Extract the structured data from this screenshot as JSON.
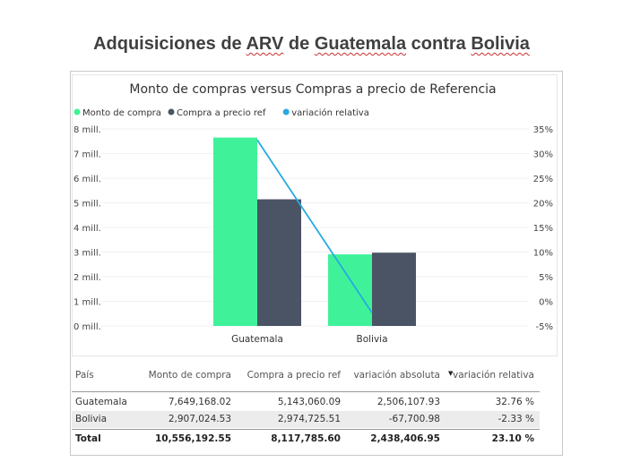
{
  "slide": {
    "title_parts": [
      "Adquisiciones de ",
      "ARV",
      " de ",
      "Guatemala",
      " contra ",
      "Bolivia"
    ]
  },
  "chart_data": {
    "type": "bar",
    "title": "Monto de compras versus Compras a precio de Referencia",
    "categories": [
      "Guatemala",
      "Bolivia"
    ],
    "series": [
      {
        "name": "Monto de compra",
        "kind": "bar",
        "axis": "left",
        "values": [
          7649168.02,
          2907024.53
        ],
        "color": "#3ff29a"
      },
      {
        "name": "Compra a precio ref",
        "kind": "bar",
        "axis": "left",
        "values": [
          5143060.09,
          2974725.51
        ],
        "color": "#4a5465"
      },
      {
        "name": "variación relativa",
        "kind": "line",
        "axis": "right",
        "values": [
          32.76,
          -2.33
        ],
        "color": "#29a9e0"
      }
    ],
    "ylim_left": [
      0,
      8000000
    ],
    "ylim_right": [
      -5,
      35
    ],
    "yticks_left": [
      "0 mill.",
      "1 mill.",
      "2 mill.",
      "3 mill.",
      "4 mill.",
      "5 mill.",
      "6 mill.",
      "7 mill.",
      "8 mill."
    ],
    "yticks_right": [
      "-5%",
      "0%",
      "5%",
      "10%",
      "15%",
      "20%",
      "25%",
      "30%",
      "35%"
    ],
    "legend_position": "top-left"
  },
  "table": {
    "headers": [
      "País",
      "Monto de compra",
      "Compra a precio ref",
      "variación absoluta",
      "variación relativa"
    ],
    "rows": [
      [
        "Guatemala",
        "7,649,168.02",
        "5,143,060.09",
        "2,506,107.93",
        "32.76 %"
      ],
      [
        "Bolivia",
        "2,907,024.53",
        "2,974,725.51",
        "-67,700.98",
        "-2.33 %"
      ]
    ],
    "total": [
      "Total",
      "10,556,192.55",
      "8,117,785.60",
      "2,438,406.95",
      "23.10 %"
    ]
  }
}
